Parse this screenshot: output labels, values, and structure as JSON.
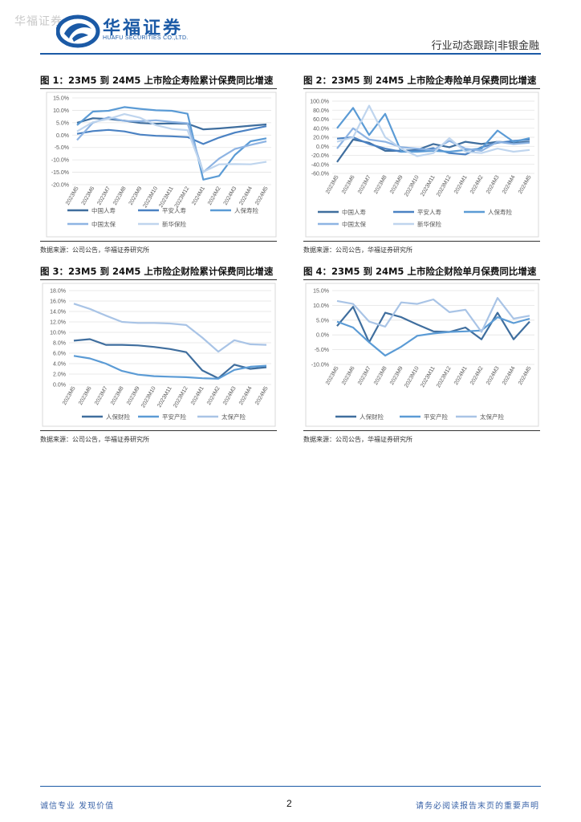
{
  "header": {
    "watermark": "华福证券",
    "brand_cn": "华福证券",
    "brand_en": "HUAFU SECURITIES CO.,LTD.",
    "section": "行业动态跟踪|非银金融",
    "accent": "#1b5aa6"
  },
  "figures": [
    {
      "title": "图 1：23M5 到 24M5 上市险企寿险累计保费同比增速",
      "source": "数据来源：公司公告，华福证券研究所"
    },
    {
      "title": "图 2：23M5 到 24M5 上市险企寿险单月保费同比增速",
      "source": "数据来源：公司公告，华福证券研究所"
    },
    {
      "title": "图 3：23M5 到 24M5 上市险企财险累计保费同比增速",
      "source": "数据来源：公司公告，华福证券研究所"
    },
    {
      "title": "图 4：23M5 到 24M5 上市险企财险单月保费同比增速",
      "source": "数据来源：公司公告，华福证券研究所"
    }
  ],
  "chart_data": [
    {
      "type": "line",
      "title": "图 1：23M5 到 24M5 上市险企寿险累计保费同比增速",
      "x": [
        "2023M5",
        "2023M6",
        "2023M7",
        "2023M8",
        "2023M9",
        "2023M10",
        "2023M11",
        "2023M12",
        "2024M1",
        "2024M2",
        "2024M3",
        "2024M4",
        "2024M5"
      ],
      "y_ticks": [
        "15.0%",
        "10.0%",
        "5.0%",
        "0.0%",
        "-5.0%",
        "-10.0%",
        "-15.0%",
        "-20.0%"
      ],
      "ylim": [
        -20,
        15
      ],
      "legend_placement": "bottom",
      "grid": true,
      "series": [
        {
          "name": "中国人寿",
          "color": "#3f6e9e",
          "values": [
            5.0,
            6.8,
            6.5,
            5.8,
            4.9,
            4.6,
            4.7,
            4.6,
            2.3,
            2.7,
            3.2,
            3.8,
            4.3
          ]
        },
        {
          "name": "平安人寿",
          "color": "#4b82c3",
          "values": [
            0.5,
            1.6,
            2.1,
            1.5,
            0.2,
            -0.3,
            -0.5,
            -0.8,
            -3.6,
            -1.0,
            1.0,
            2.3,
            3.6
          ]
        },
        {
          "name": "人保寿险",
          "color": "#5b9bd5",
          "values": [
            4.0,
            9.5,
            9.8,
            11.3,
            10.6,
            10.0,
            9.8,
            8.6,
            -18.0,
            -16.5,
            -8.0,
            -2.5,
            -1.3
          ]
        },
        {
          "name": "中国太保",
          "color": "#8eb4e3",
          "values": [
            -2.0,
            5.0,
            7.2,
            5.7,
            5.6,
            6.0,
            5.3,
            4.8,
            -15.0,
            -9.5,
            -5.6,
            -4.0,
            -2.5
          ]
        },
        {
          "name": "新华保险",
          "color": "#bfd5ee",
          "values": [
            1.5,
            5.2,
            6.5,
            8.5,
            7.0,
            4.0,
            2.5,
            2.0,
            -14.8,
            -11.8,
            -11.7,
            -11.8,
            -10.8
          ]
        }
      ]
    },
    {
      "type": "line",
      "title": "图 2：23M5 到 24M5 上市险企寿险单月保费同比增速",
      "x": [
        "2023M5",
        "2023M6",
        "2023M7",
        "2023M8",
        "2023M9",
        "2023M10",
        "2023M11",
        "2023M12",
        "2024M1",
        "2024M2",
        "2024M3",
        "2024M4",
        "2024M5"
      ],
      "y_ticks": [
        "100.0%",
        "80.0%",
        "60.0%",
        "40.0%",
        "20.0%",
        "0.0%",
        "-20.0%",
        "-40.0%",
        "-60.0%"
      ],
      "ylim": [
        -60,
        100
      ],
      "legend_placement": "bottom",
      "grid": true,
      "series": [
        {
          "name": "中国人寿",
          "color": "#3f6e9e",
          "values": [
            -35,
            15,
            8,
            -10,
            -10,
            -8,
            5,
            -2,
            10,
            5,
            10,
            8,
            10
          ]
        },
        {
          "name": "平安人寿",
          "color": "#4b82c3",
          "values": [
            17,
            20,
            5,
            -5,
            -12,
            -10,
            -4,
            -15,
            -18,
            -2,
            8,
            12,
            15
          ]
        },
        {
          "name": "人保寿险",
          "color": "#5b9bd5",
          "values": [
            40,
            85,
            25,
            72,
            -12,
            -12,
            -10,
            -12,
            -8,
            -5,
            35,
            10,
            18
          ]
        },
        {
          "name": "中国太保",
          "color": "#8eb4e3",
          "values": [
            -5,
            40,
            15,
            10,
            -2,
            -5,
            -8,
            12,
            -5,
            -10,
            10,
            5,
            8
          ]
        },
        {
          "name": "新华保险",
          "color": "#bfd5ee",
          "values": [
            10,
            20,
            90,
            20,
            -5,
            -22,
            -15,
            18,
            -12,
            -15,
            -5,
            -12,
            -8
          ]
        }
      ]
    },
    {
      "type": "line",
      "title": "图 3：23M5 到 24M5 上市险企财险累计保费同比增速",
      "x": [
        "2023M5",
        "2023M6",
        "2023M7",
        "2023M8",
        "2023M9",
        "2023M10",
        "2023M11",
        "2023M12",
        "2024M1",
        "2024M2",
        "2024M3",
        "2024M4",
        "2024M5"
      ],
      "y_ticks": [
        "18.0%",
        "16.0%",
        "14.0%",
        "12.0%",
        "10.0%",
        "8.0%",
        "6.0%",
        "4.0%",
        "2.0%",
        "0.0%"
      ],
      "ylim": [
        0,
        18
      ],
      "legend_placement": "bottom",
      "grid": true,
      "series": [
        {
          "name": "人保财险",
          "color": "#3f6e9e",
          "values": [
            8.4,
            8.7,
            7.6,
            7.6,
            7.5,
            7.2,
            6.8,
            6.2,
            2.7,
            1.2,
            3.8,
            3.0,
            3.3
          ]
        },
        {
          "name": "平安产险",
          "color": "#5b9bd5",
          "values": [
            5.5,
            5.0,
            4.0,
            2.6,
            1.9,
            1.6,
            1.5,
            1.4,
            1.2,
            1.1,
            2.8,
            3.4,
            3.6
          ]
        },
        {
          "name": "太保产险",
          "color": "#a9c4e6",
          "values": [
            15.5,
            14.5,
            13.2,
            12.0,
            11.8,
            11.8,
            11.7,
            11.4,
            9.0,
            6.3,
            8.5,
            7.7,
            7.6
          ]
        }
      ]
    },
    {
      "type": "line",
      "title": "图 4：23M5 到 24M5 上市险企财险单月保费同比增速",
      "x": [
        "2023M5",
        "2023M6",
        "2023M7",
        "2023M8",
        "2023M9",
        "2023M10",
        "2023M11",
        "2023M12",
        "2024M1",
        "2024M2",
        "2024M3",
        "2024M4",
        "2024M5"
      ],
      "y_ticks": [
        "15.0%",
        "10.0%",
        "5.0%",
        "0.0%",
        "-5.0%",
        "-10.0%"
      ],
      "ylim": [
        -10,
        15
      ],
      "legend_placement": "bottom",
      "grid": true,
      "series": [
        {
          "name": "人保财险",
          "color": "#3f6e9e",
          "values": [
            3.0,
            9.5,
            -2.5,
            7.5,
            6.0,
            3.5,
            1.2,
            1.0,
            2.5,
            -1.5,
            7.5,
            -1.5,
            4.5
          ]
        },
        {
          "name": "平安产险",
          "color": "#5b9bd5",
          "values": [
            4.5,
            2.5,
            -2.5,
            -7.0,
            -4.0,
            -0.3,
            0.5,
            1.0,
            1.2,
            1.5,
            6.0,
            4.0,
            5.5
          ]
        },
        {
          "name": "太保产险",
          "color": "#a9c4e6",
          "values": [
            11.5,
            10.5,
            4.5,
            2.8,
            11.0,
            10.5,
            12.0,
            7.7,
            8.5,
            1.0,
            12.5,
            5.5,
            6.5
          ]
        }
      ]
    }
  ],
  "footer": {
    "left": "诚信专业  发现价值",
    "page": "2",
    "right": "请务必阅读报告末页的重要声明"
  }
}
